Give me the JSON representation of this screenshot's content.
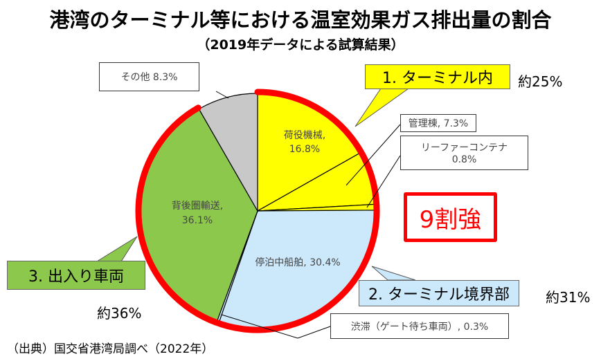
{
  "chart_data": {
    "type": "pie",
    "title": "港湾のターミナル等における温室効果ガス排出量の割合",
    "subtitle": "（2019年データによる試算結果）",
    "slices": [
      {
        "label": "荷役機械",
        "value": 16.8,
        "color": "#ffff00",
        "group": "1. ターミナル内"
      },
      {
        "label": "管理棟",
        "value": 7.3,
        "color": "#ffff00",
        "group": "1. ターミナル内"
      },
      {
        "label": "リーファーコンテナ",
        "value": 0.8,
        "color": "#ffff00",
        "group": "1. ターミナル内"
      },
      {
        "label": "停泊中船舶",
        "value": 30.4,
        "color": "#cce8fb",
        "group": "2. ターミナル境界部"
      },
      {
        "label": "渋滞（ゲート待ち車両）",
        "value": 0.3,
        "color": "#cce8fb",
        "group": "2. ターミナル境界部"
      },
      {
        "label": "背後圏輸送",
        "value": 36.1,
        "color": "#8cc84b",
        "group": "3. 出入り車両"
      },
      {
        "label": "その他",
        "value": 8.3,
        "color": "#c8c8c8",
        "group": ""
      }
    ],
    "highlight": {
      "label": "9割強",
      "color": "#ff0000",
      "covers_percent": 91.7
    }
  },
  "labels": {
    "sonota": "その他  8.3%",
    "niyaku_name": "荷役機械,",
    "niyaku_pct": "16.8%",
    "kanri": "管理棟, 7.3%",
    "reefer1": "リーファーコンテナ",
    "reefer2": "0.8%",
    "teihaku": "停泊中船舶, 30.4%",
    "jutai": "渋滞（ゲート待ち車両）, 0.3%",
    "haigo_name": "背後圏輸送,",
    "haigo_pct": "36.1%"
  },
  "groups": {
    "g1": "1. ターミナル内",
    "g1_pct": "約25%",
    "g2": "2. ターミナル境界部",
    "g2_pct": "約31%",
    "g3": "3. 出入り車両",
    "g3_pct": "約36%"
  },
  "highlight_label": "9割強",
  "source": "（出典）国交省港湾局調べ（2022年）"
}
